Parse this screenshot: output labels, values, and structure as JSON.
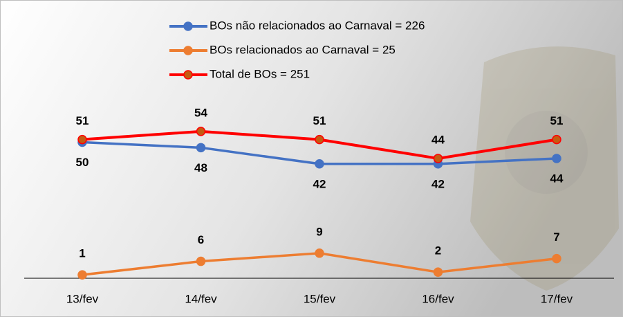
{
  "chart_data": {
    "type": "line",
    "categories": [
      "13/fev",
      "14/fev",
      "15/fev",
      "16/fev",
      "17/fev"
    ],
    "series": [
      {
        "name": "BOs não relacionados ao Carnaval = 226",
        "color": "#4472c4",
        "values": [
          50,
          48,
          42,
          42,
          44
        ]
      },
      {
        "name": "BOs relacionados ao Carnaval = 25",
        "color": "#ed7d31",
        "values": [
          1,
          6,
          9,
          2,
          7
        ]
      },
      {
        "name": "Total de BOs = 251",
        "color": "#ff0000",
        "values": [
          51,
          54,
          51,
          44,
          51
        ]
      }
    ],
    "ylim": [
      0,
      100
    ]
  }
}
